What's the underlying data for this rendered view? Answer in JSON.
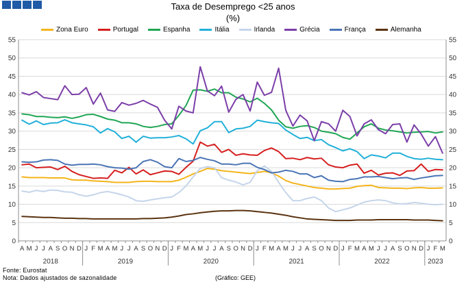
{
  "title": "Taxa de Desemprego <25 anos",
  "subtitle": "(%)",
  "footer": {
    "source": "Fonte: Eurostat",
    "note": "Nota: Dados ajustados de sazonalidade",
    "credit": "(Gráfico: GEE)"
  },
  "chart_data": {
    "type": "line",
    "ylim": [
      0,
      55
    ],
    "yticks": [
      0,
      5,
      10,
      15,
      20,
      25,
      30,
      35,
      40,
      45,
      50,
      55
    ],
    "grid": true,
    "legend_position": "top",
    "month_labels": [
      "A",
      "M",
      "J",
      "J",
      "A",
      "S",
      "O",
      "N",
      "D",
      "J",
      "F",
      "M",
      "A",
      "M",
      "J",
      "J",
      "A",
      "S",
      "O",
      "N",
      "D",
      "J",
      "F",
      "M",
      "A",
      "M",
      "J",
      "J",
      "A",
      "S",
      "O",
      "N",
      "D",
      "J",
      "F",
      "M",
      "A",
      "M",
      "J",
      "J",
      "A",
      "S",
      "O",
      "N",
      "D",
      "J",
      "F",
      "M",
      "A",
      "M",
      "J",
      "J",
      "A",
      "S",
      "O",
      "N",
      "D",
      "J",
      "F",
      "M"
    ],
    "year_labels": [
      {
        "label": "2018",
        "start": 0,
        "end": 8
      },
      {
        "label": "2019",
        "start": 9,
        "end": 20
      },
      {
        "label": "2020",
        "start": 21,
        "end": 32
      },
      {
        "label": "2021",
        "start": 33,
        "end": 44
      },
      {
        "label": "2022",
        "start": 45,
        "end": 56
      },
      {
        "label": "2023",
        "start": 57,
        "end": 59
      }
    ],
    "series": [
      {
        "name": "Zona Euro",
        "color": "#f4b41a",
        "values": [
          17.5,
          17.3,
          17.3,
          17.3,
          17.2,
          17.2,
          17.2,
          16.7,
          16.6,
          16.6,
          16.4,
          16.3,
          16.2,
          16.0,
          16.0,
          16.0,
          16.2,
          16.3,
          16.3,
          16.2,
          16.2,
          16.2,
          16.6,
          17.4,
          18.3,
          19.0,
          19.8,
          19.6,
          19.2,
          19.0,
          18.8,
          18.6,
          18.4,
          18.7,
          19.0,
          18.6,
          17.7,
          16.5,
          15.8,
          15.4,
          15.0,
          14.6,
          14.4,
          14.2,
          14.2,
          14.3,
          14.4,
          14.9,
          15.1,
          15.2,
          14.6,
          14.5,
          14.4,
          14.4,
          14.3,
          14.5,
          14.6,
          14.4,
          14.4,
          14.5
        ]
      },
      {
        "name": "Portugal",
        "color": "#d61e1e",
        "values": [
          20.8,
          21.0,
          20.0,
          20.1,
          20.2,
          19.5,
          20.4,
          19.0,
          18.1,
          17.6,
          17.1,
          17.2,
          17.1,
          19.3,
          18.6,
          20.1,
          18.3,
          19.4,
          18.1,
          18.6,
          19.1,
          19.0,
          18.2,
          20.1,
          21.8,
          27.0,
          25.9,
          26.4,
          24.2,
          25.0,
          23.4,
          23.8,
          23.5,
          23.4,
          24.7,
          25.4,
          24.4,
          22.5,
          22.6,
          22.2,
          22.8,
          22.4,
          22.6,
          20.8,
          20.2,
          20.0,
          20.7,
          21.0,
          18.5,
          19.3,
          18.0,
          18.5,
          18.6,
          17.9,
          19.1,
          19.2,
          21.0,
          19.0,
          19.5,
          19.4
        ]
      },
      {
        "name": "Espanha",
        "color": "#1fa653",
        "values": [
          34.7,
          34.5,
          34.0,
          34.0,
          33.8,
          33.7,
          33.9,
          33.5,
          33.9,
          34.5,
          34.6,
          34.0,
          33.3,
          33.0,
          32.3,
          32.3,
          32.0,
          31.3,
          31.0,
          31.3,
          31.8,
          32.0,
          34.3,
          37.0,
          41.2,
          41.3,
          40.9,
          41.5,
          40.5,
          40.5,
          39.3,
          38.8,
          38.0,
          39.0,
          37.6,
          35.8,
          33.0,
          31.2,
          30.8,
          31.3,
          31.5,
          31.0,
          30.0,
          29.7,
          29.3,
          28.3,
          27.8,
          29.5,
          31.2,
          32.0,
          30.8,
          30.3,
          30.1,
          29.8,
          29.5,
          29.7,
          29.8,
          29.9,
          29.5,
          29.8
        ]
      },
      {
        "name": "Itália",
        "color": "#21b0d9",
        "values": [
          33.0,
          31.9,
          32.8,
          31.8,
          32.2,
          32.3,
          33.1,
          32.3,
          32.0,
          31.7,
          31.2,
          29.5,
          30.7,
          29.8,
          28.0,
          28.6,
          27.0,
          28.6,
          28.1,
          28.2,
          28.2,
          28.4,
          28.8,
          27.9,
          26.5,
          30.1,
          30.9,
          32.6,
          32.6,
          29.6,
          30.6,
          30.8,
          31.3,
          33.0,
          32.6,
          32.3,
          32.1,
          30.3,
          29.1,
          28.0,
          28.3,
          27.4,
          27.7,
          26.3,
          25.5,
          24.6,
          25.2,
          24.4,
          22.5,
          23.5,
          23.2,
          22.7,
          24.0,
          24.0,
          23.1,
          22.5,
          22.3,
          22.6,
          22.3,
          22.2
        ]
      },
      {
        "name": "Irlanda",
        "color": "#c5d5ea",
        "values": [
          13.6,
          13.3,
          13.8,
          13.5,
          13.9,
          13.8,
          13.4,
          13.3,
          12.6,
          12.2,
          12.6,
          13.2,
          13.5,
          13.1,
          12.6,
          12.0,
          11.0,
          10.8,
          11.2,
          11.5,
          11.8,
          12.0,
          13.2,
          15.0,
          17.5,
          19.8,
          20.3,
          20.0,
          17.3,
          16.6,
          16.1,
          15.3,
          16.0,
          19.2,
          20.5,
          19.0,
          16.0,
          13.2,
          11.0,
          11.0,
          11.6,
          12.0,
          11.0,
          9.0,
          8.0,
          8.5,
          9.0,
          9.8,
          10.6,
          11.0,
          11.2,
          11.0,
          10.4,
          10.1,
          10.2,
          10.5,
          10.3,
          10.0,
          9.9,
          10.0
        ]
      },
      {
        "name": "Grécia",
        "color": "#7b3ea8",
        "values": [
          40.5,
          39.9,
          40.8,
          39.2,
          38.9,
          38.6,
          42.4,
          40.0,
          40.1,
          41.9,
          37.4,
          40.4,
          35.8,
          35.4,
          37.8,
          37.1,
          37.6,
          38.4,
          37.4,
          36.5,
          33.0,
          30.6,
          36.8,
          35.5,
          35.0,
          47.6,
          41.0,
          39.7,
          42.3,
          35.2,
          38.7,
          40.0,
          35.5,
          43.4,
          39.8,
          40.6,
          47.2,
          35.7,
          31.4,
          34.4,
          32.8,
          27.4,
          32.6,
          32.0,
          30.0,
          35.7,
          34.0,
          28.7,
          32.0,
          33.1,
          30.4,
          29.3,
          31.8,
          32.0,
          27.0,
          31.7,
          29.2,
          25.9,
          28.5,
          24.0
        ]
      },
      {
        "name": "França",
        "color": "#4a74b5",
        "values": [
          21.6,
          21.5,
          21.6,
          22.1,
          22.2,
          22.0,
          21.0,
          20.7,
          20.9,
          20.9,
          21.0,
          20.8,
          20.3,
          20.0,
          19.9,
          19.6,
          20.0,
          21.7,
          22.2,
          21.5,
          20.3,
          20.0,
          22.5,
          21.7,
          22.0,
          22.8,
          22.3,
          21.9,
          21.0,
          21.0,
          20.8,
          21.2,
          21.2,
          20.1,
          19.5,
          18.6,
          18.8,
          19.3,
          19.0,
          18.3,
          18.3,
          17.3,
          17.8,
          16.6,
          16.3,
          16.2,
          16.8,
          17.0,
          17.5,
          17.5,
          17.6,
          17.3,
          17.0,
          17.2,
          17.3,
          16.8,
          17.2,
          17.5,
          17.8,
          17.9
        ]
      },
      {
        "name": "Alemanha",
        "color": "#5a3210",
        "values": [
          6.7,
          6.6,
          6.5,
          6.4,
          6.4,
          6.3,
          6.2,
          6.2,
          6.1,
          6.1,
          6.0,
          6.0,
          6.0,
          6.0,
          6.0,
          6.0,
          6.0,
          6.1,
          6.1,
          6.2,
          6.3,
          6.5,
          6.8,
          7.2,
          7.4,
          7.7,
          7.9,
          8.1,
          8.2,
          8.2,
          8.3,
          8.3,
          8.2,
          8.0,
          7.8,
          7.6,
          7.3,
          7.0,
          6.6,
          6.3,
          6.0,
          5.9,
          5.8,
          5.7,
          5.6,
          5.6,
          5.6,
          5.7,
          5.7,
          5.7,
          5.8,
          5.8,
          5.8,
          5.8,
          5.8,
          5.7,
          5.7,
          5.7,
          5.6,
          5.5
        ]
      }
    ]
  }
}
